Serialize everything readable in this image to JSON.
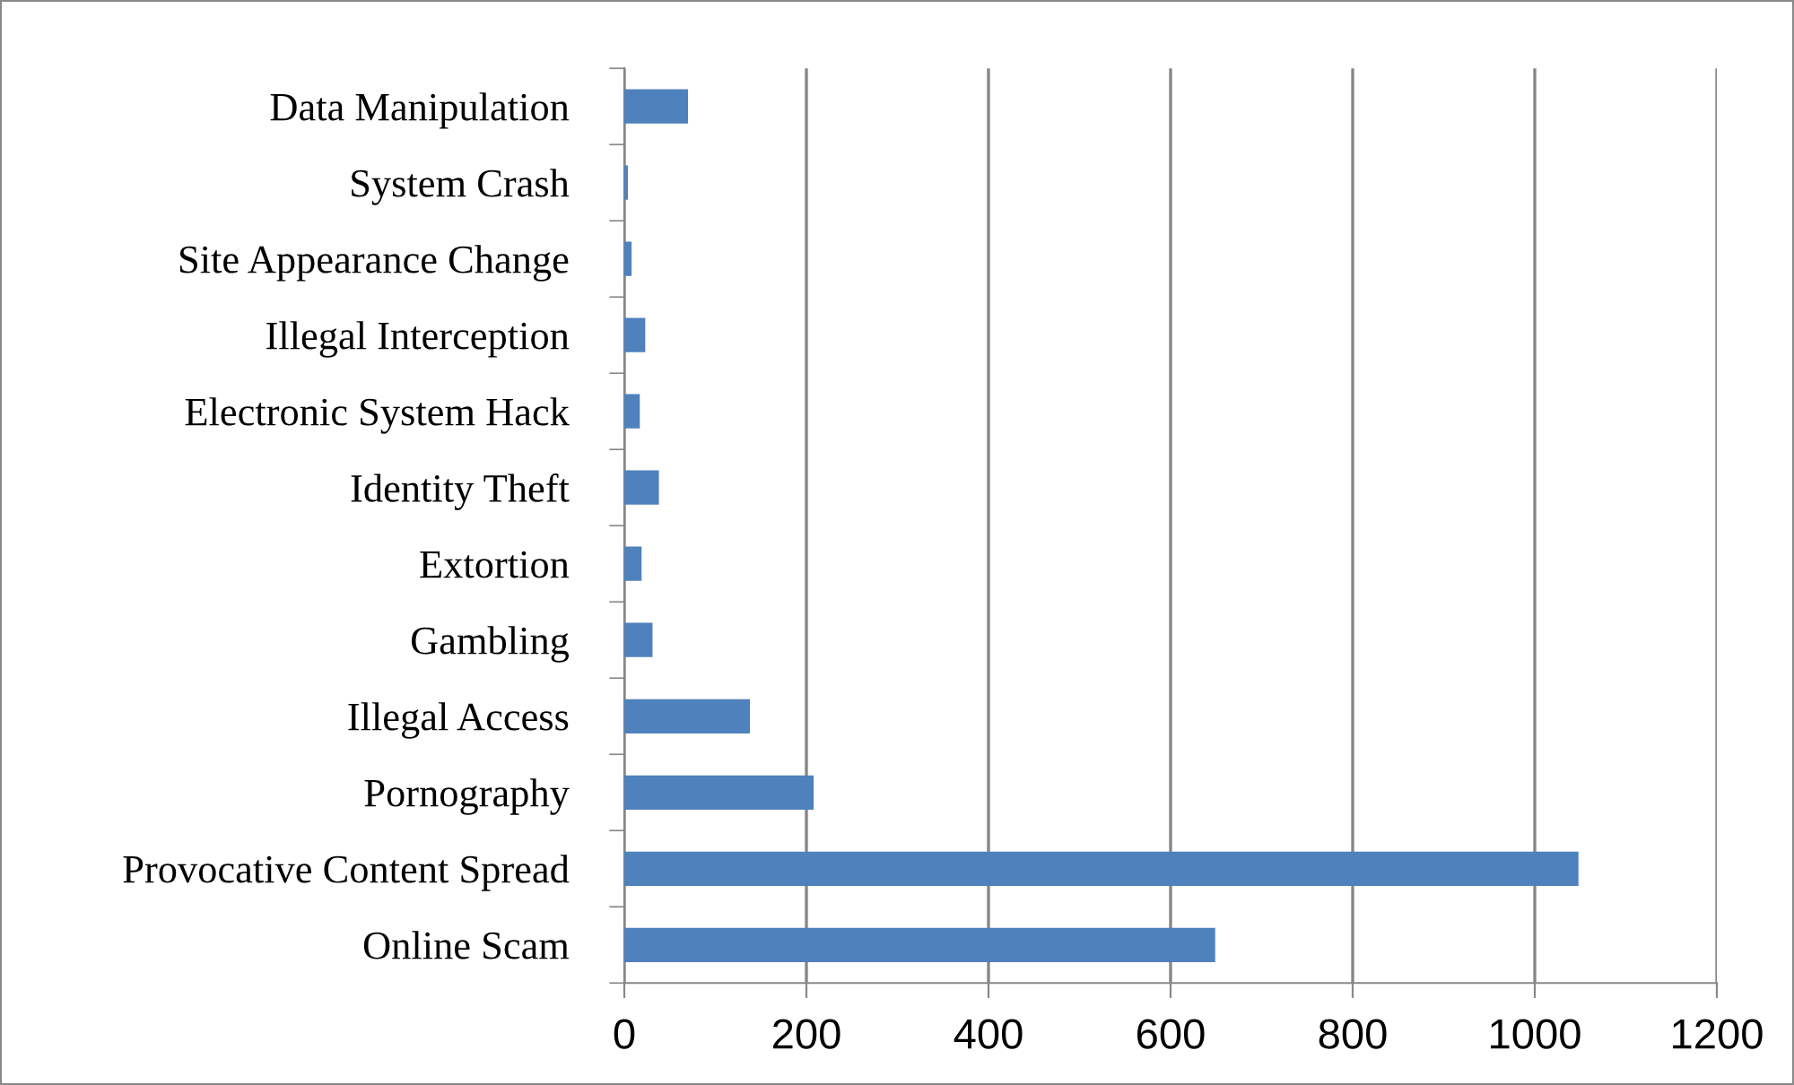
{
  "chart_data": {
    "type": "bar",
    "orientation": "horizontal",
    "categories": [
      "Data Manipulation",
      "System Crash",
      "Site Appearance Change",
      "Illegal Interception",
      "Electronic System Hack",
      "Identity Theft",
      "Extortion",
      "Gambling",
      "Illegal Access",
      "Pornography",
      "Provocative Content Spread",
      "Online Scam"
    ],
    "values": [
      70,
      4,
      8,
      23,
      17,
      38,
      19,
      31,
      138,
      208,
      1048,
      649
    ],
    "color": "#4f81bd",
    "xlim": [
      0,
      1200
    ],
    "xticks": [
      0,
      200,
      400,
      600,
      800,
      1000,
      1200
    ],
    "grid": "x"
  }
}
